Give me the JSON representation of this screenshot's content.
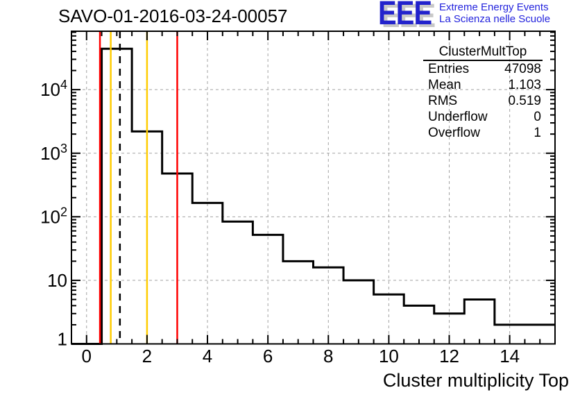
{
  "title": "SAVO-01-2016-03-24-00057",
  "logo": {
    "acronym": "EEE",
    "line1": "Extreme Energy Events",
    "line2": "La Scienza nelle Scuole",
    "color": "#2222cc",
    "shadow_color": "#c8c8c8"
  },
  "stats": {
    "title": "ClusterMultTop",
    "rows": [
      {
        "label": "Entries",
        "value": "47098"
      },
      {
        "label": "Mean",
        "value": "1.103"
      },
      {
        "label": "RMS",
        "value": "0.519"
      },
      {
        "label": "Underflow",
        "value": "0"
      },
      {
        "label": "Overflow",
        "value": "1"
      }
    ]
  },
  "chart_data": {
    "type": "bar",
    "title": "SAVO-01-2016-03-24-00057",
    "xlabel": "Cluster multiplicity Top",
    "ylabel": "",
    "y_scale": "log",
    "x_range": [
      -0.5,
      15.5
    ],
    "y_range": [
      1,
      83000
    ],
    "bin_width": 1,
    "bin_centers": [
      0,
      1,
      2,
      3,
      4,
      5,
      6,
      7,
      8,
      9,
      10,
      11,
      12,
      13,
      14,
      15
    ],
    "counts": [
      0,
      44000,
      2200,
      480,
      165,
      84,
      52,
      20,
      16,
      10,
      6,
      4,
      3,
      5,
      2,
      2
    ],
    "line_color": "#000000",
    "grid": "dashed-major",
    "grid_color": "#a2a2a2",
    "xticks": [
      {
        "value": 0,
        "label": "0"
      },
      {
        "value": 2,
        "label": "2"
      },
      {
        "value": 4,
        "label": "4"
      },
      {
        "value": 6,
        "label": "6"
      },
      {
        "value": 8,
        "label": "8"
      },
      {
        "value": 10,
        "label": "10"
      },
      {
        "value": 12,
        "label": "12"
      },
      {
        "value": 14,
        "label": "14"
      }
    ],
    "yticks": [
      {
        "value": 1,
        "text": "1",
        "sup": ""
      },
      {
        "value": 10,
        "text": "10",
        "sup": ""
      },
      {
        "value": 100,
        "text": "10",
        "sup": "2"
      },
      {
        "value": 1000,
        "text": "10",
        "sup": "3"
      },
      {
        "value": 10000,
        "text": "10",
        "sup": "4"
      }
    ],
    "reference_lines": [
      {
        "name": "red-lower-limit",
        "x": 0.5,
        "color": "#ff0000",
        "style": "solid"
      },
      {
        "name": "orange-lower-limit",
        "x": 0.8,
        "color": "#ffcc00",
        "style": "solid"
      },
      {
        "name": "mean-line",
        "x": 1.103,
        "color": "#000000",
        "style": "dashed"
      },
      {
        "name": "orange-upper-limit",
        "x": 2.0,
        "color": "#ffcc00",
        "style": "solid"
      },
      {
        "name": "red-upper-limit",
        "x": 3.0,
        "color": "#ff0000",
        "style": "solid"
      }
    ],
    "legend": "none"
  }
}
